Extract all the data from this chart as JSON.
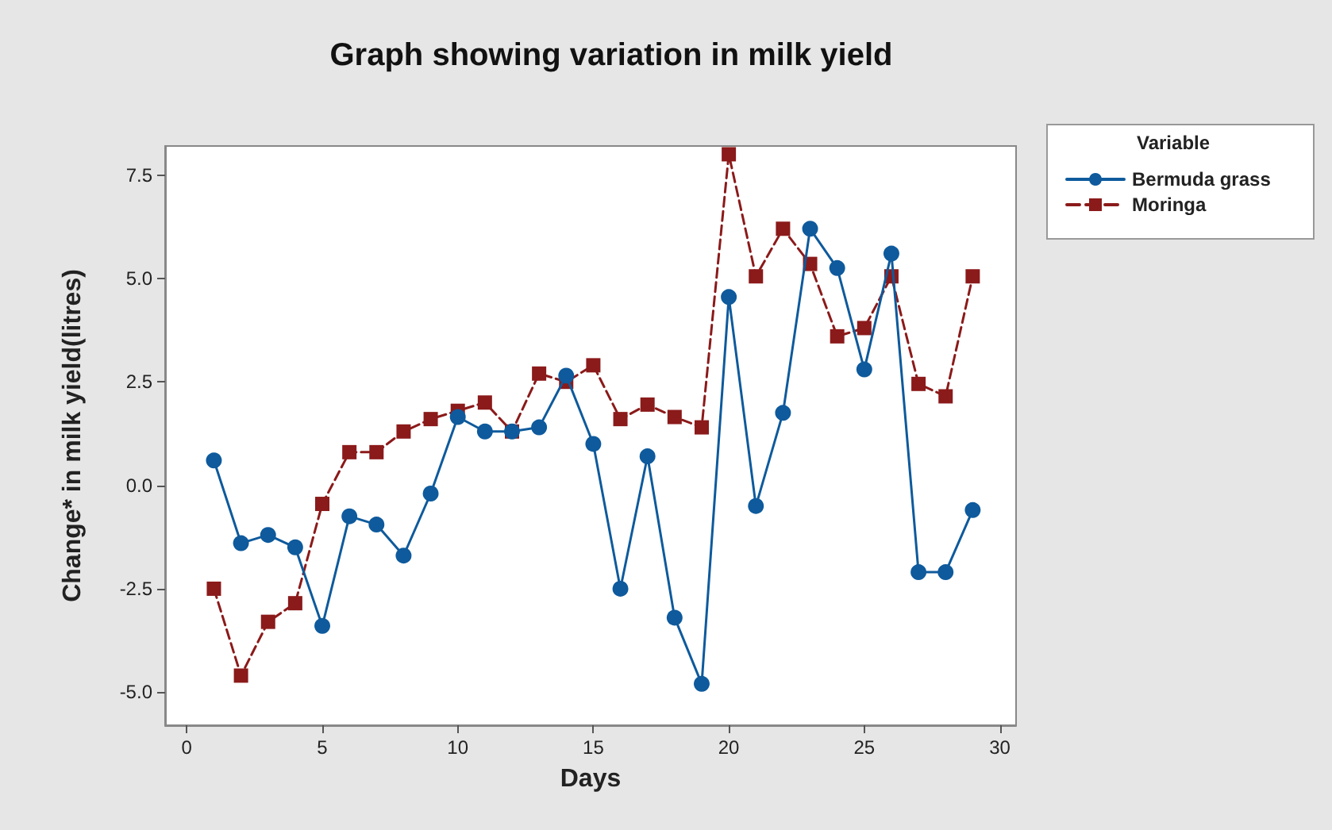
{
  "chart_data": {
    "type": "line",
    "title": "Graph showing variation in milk yield",
    "xlabel": "Days",
    "ylabel": "Change* in milk yield(litres)",
    "legend_title": "Variable",
    "legend": "right",
    "grid": false,
    "x": [
      1,
      2,
      3,
      4,
      5,
      6,
      7,
      8,
      9,
      10,
      11,
      12,
      13,
      14,
      15,
      16,
      17,
      18,
      19,
      20,
      21,
      22,
      23,
      24,
      25,
      26,
      27,
      28,
      29
    ],
    "xlim": [
      -0.8,
      30.6
    ],
    "xticks": [
      0,
      5,
      10,
      15,
      20,
      25,
      30
    ],
    "ylim": [
      -5.8,
      8.2
    ],
    "yticks": [
      {
        "value": -5,
        "label": "-5.0"
      },
      {
        "value": -2.5,
        "label": "-2.5"
      },
      {
        "value": 0,
        "label": "0.0"
      },
      {
        "value": 2.5,
        "label": "2.5"
      },
      {
        "value": 5,
        "label": "5.0"
      },
      {
        "value": 7.5,
        "label": "7.5"
      }
    ],
    "series": [
      {
        "name": "Bermuda grass",
        "color": "#0e5a9c",
        "marker": "circle",
        "line_style": "solid",
        "values": [
          0.6,
          -1.4,
          -1.2,
          -1.5,
          -3.4,
          -0.75,
          -0.95,
          -1.7,
          -0.2,
          1.65,
          1.3,
          1.3,
          1.4,
          2.65,
          1.0,
          -2.5,
          0.7,
          -3.2,
          -4.8,
          4.55,
          -0.5,
          1.75,
          6.2,
          5.25,
          2.8,
          5.6,
          -2.1,
          -2.1,
          -0.6
        ]
      },
      {
        "name": "Moringa",
        "color": "#8b1a1a",
        "marker": "square",
        "line_style": "dashed",
        "values": [
          -2.5,
          -4.6,
          -3.3,
          -2.85,
          -0.45,
          0.8,
          0.8,
          1.3,
          1.6,
          1.8,
          2.0,
          1.3,
          2.7,
          2.5,
          2.9,
          1.6,
          1.95,
          1.65,
          1.4,
          8.0,
          5.05,
          6.2,
          5.35,
          3.6,
          3.8,
          5.05,
          2.45,
          2.15,
          5.05
        ]
      }
    ]
  }
}
